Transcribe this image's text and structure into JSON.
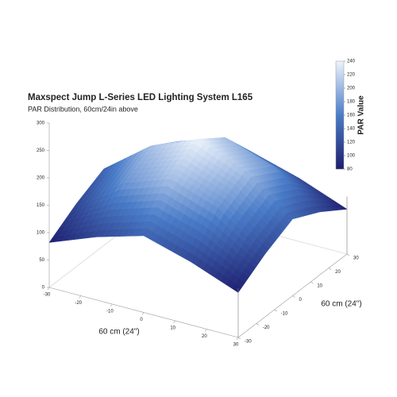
{
  "chart_data": {
    "type": "surface",
    "title": "Maxspect Jump L-Series LED Lighting System L165",
    "subtitle": "PAR Distribution, 60cm/24in above",
    "x_label": "60 cm (24\")",
    "y_label": "60 cm (24\")",
    "colorbar_label": "PAR Value",
    "x": [
      -30,
      -15,
      0,
      15,
      30
    ],
    "y": [
      -30,
      -15,
      0,
      15,
      30
    ],
    "z": [
      [
        82,
        115,
        140,
        115,
        82
      ],
      [
        115,
        175,
        205,
        175,
        115
      ],
      [
        140,
        205,
        240,
        205,
        140
      ],
      [
        115,
        175,
        205,
        175,
        115
      ],
      [
        82,
        115,
        140,
        115,
        82
      ]
    ],
    "xlim": [
      -30,
      30
    ],
    "ylim": [
      -30,
      30
    ],
    "zlim": [
      0,
      300
    ],
    "xticks": [
      -30,
      -20,
      -10,
      0,
      10,
      20,
      30
    ],
    "yticks": [
      -30,
      -20,
      -10,
      0,
      10,
      20,
      30
    ],
    "zticks": [
      0,
      50,
      100,
      150,
      200,
      250,
      300
    ],
    "clim": [
      80,
      240
    ],
    "cticks": [
      80,
      100,
      120,
      140,
      160,
      180,
      200,
      220,
      240
    ],
    "colormap": [
      "#1e1e6e",
      "#4a7cc8",
      "#eef4fc"
    ]
  }
}
